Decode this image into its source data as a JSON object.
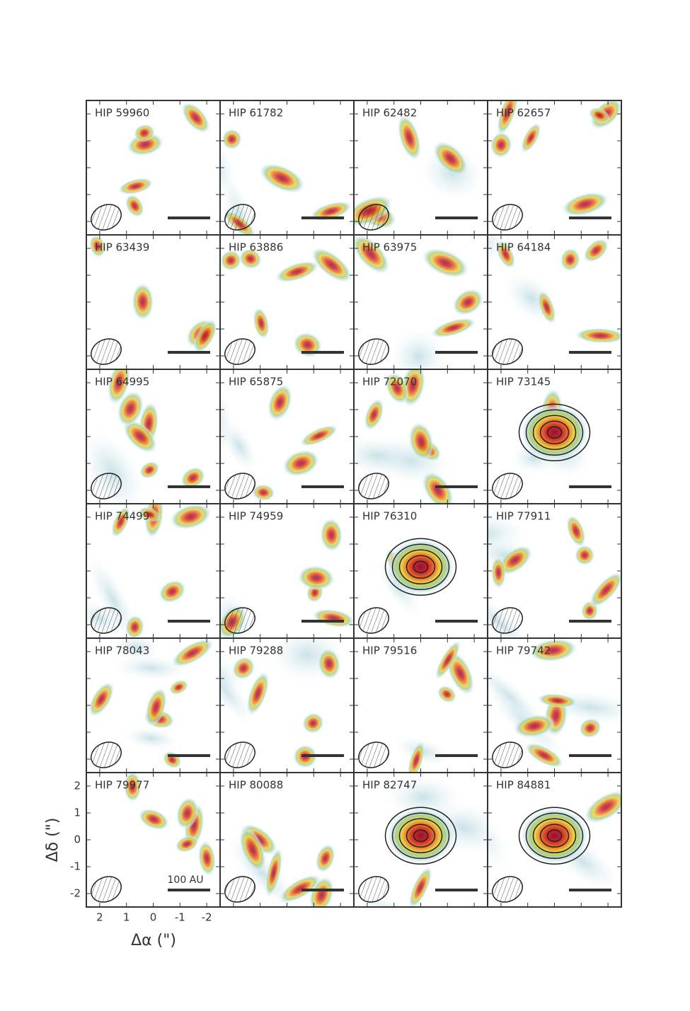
{
  "chart_data": {
    "type": "image_grid",
    "panels": [
      "HIP 59960",
      "HIP 61782",
      "HIP 62482",
      "HIP 62657",
      "HIP 63439",
      "HIP 63886",
      "HIP 63975",
      "HIP 64184",
      "HIP 64995",
      "HIP 65875",
      "HIP 72070",
      "HIP 73145",
      "HIP 74499",
      "HIP 74959",
      "HIP 76310",
      "HIP 77911",
      "HIP 78043",
      "HIP 79288",
      "HIP 79516",
      "HIP 79742",
      "HIP 79977",
      "HIP 80088",
      "HIP 82747",
      "HIP 84881"
    ],
    "bright_panels": [
      "HIP 73145",
      "HIP 76310",
      "HIP 82747",
      "HIP 84881"
    ],
    "xlabel": "Δα (\")",
    "ylabel": "Δδ (\")",
    "xlim": [
      2.5,
      -2.5
    ],
    "ylim": [
      -2.5,
      2.5
    ],
    "xticks": [
      2,
      1,
      0,
      -1,
      -2
    ],
    "yticks": [
      -2,
      -1,
      0,
      1,
      2
    ],
    "scale_bar_label": "100 AU"
  }
}
